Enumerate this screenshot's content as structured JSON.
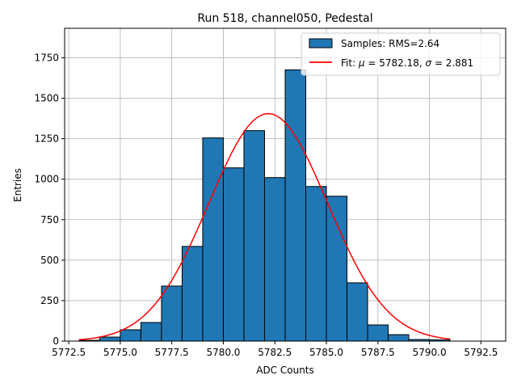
{
  "chart_data": {
    "type": "bar",
    "title": "Run 518, channel050, Pedestal",
    "xlabel": "ADC Counts",
    "ylabel": "Entries",
    "xlim": [
      5772.3,
      5793.7
    ],
    "ylim": [
      0,
      1932
    ],
    "grid": true,
    "legend_position": "top-right",
    "bar_color": "#1f77b4",
    "fit_color": "#ff0000",
    "xticks": [
      5772.5,
      5775.0,
      5777.5,
      5780.0,
      5782.5,
      5785.0,
      5787.5,
      5790.0,
      5792.5
    ],
    "xtick_labels": [
      "5772.5",
      "5775.0",
      "5777.5",
      "5780.0",
      "5782.5",
      "5785.0",
      "5787.5",
      "5790.0",
      "5792.5"
    ],
    "yticks": [
      0,
      250,
      500,
      750,
      1000,
      1250,
      1500,
      1750
    ],
    "ytick_labels": [
      "0",
      "250",
      "500",
      "750",
      "1000",
      "1250",
      "1500",
      "1750"
    ],
    "bins": [
      {
        "x0": 5773.0,
        "x1": 5774.0,
        "count": 5
      },
      {
        "x0": 5774.0,
        "x1": 5775.0,
        "count": 25
      },
      {
        "x0": 5775.0,
        "x1": 5776.0,
        "count": 70
      },
      {
        "x0": 5776.0,
        "x1": 5777.0,
        "count": 115
      },
      {
        "x0": 5777.0,
        "x1": 5778.0,
        "count": 340
      },
      {
        "x0": 5778.0,
        "x1": 5779.0,
        "count": 585
      },
      {
        "x0": 5779.0,
        "x1": 5780.0,
        "count": 1255
      },
      {
        "x0": 5780.0,
        "x1": 5781.0,
        "count": 1070
      },
      {
        "x0": 5781.0,
        "x1": 5782.0,
        "count": 1300
      },
      {
        "x0": 5782.0,
        "x1": 5783.0,
        "count": 1010
      },
      {
        "x0": 5783.0,
        "x1": 5784.0,
        "count": 1675
      },
      {
        "x0": 5784.0,
        "x1": 5785.0,
        "count": 955
      },
      {
        "x0": 5785.0,
        "x1": 5786.0,
        "count": 895
      },
      {
        "x0": 5786.0,
        "x1": 5787.0,
        "count": 360
      },
      {
        "x0": 5787.0,
        "x1": 5788.0,
        "count": 100
      },
      {
        "x0": 5788.0,
        "x1": 5789.0,
        "count": 40
      },
      {
        "x0": 5789.0,
        "x1": 5790.0,
        "count": 10
      },
      {
        "x0": 5790.0,
        "x1": 5791.0,
        "count": 8
      }
    ],
    "fit": {
      "mu": 5782.18,
      "sigma": 2.881,
      "amplitude": 1405,
      "x_range": [
        5773.0,
        5791.0
      ]
    },
    "legend": {
      "samples_label": "Samples: RMS=2.64",
      "fit_prefix": "Fit: ",
      "mu_symbol": "μ",
      "mu_text": " = 5782.18, ",
      "sigma_symbol": "σ",
      "sigma_text": " = 2.881"
    }
  }
}
